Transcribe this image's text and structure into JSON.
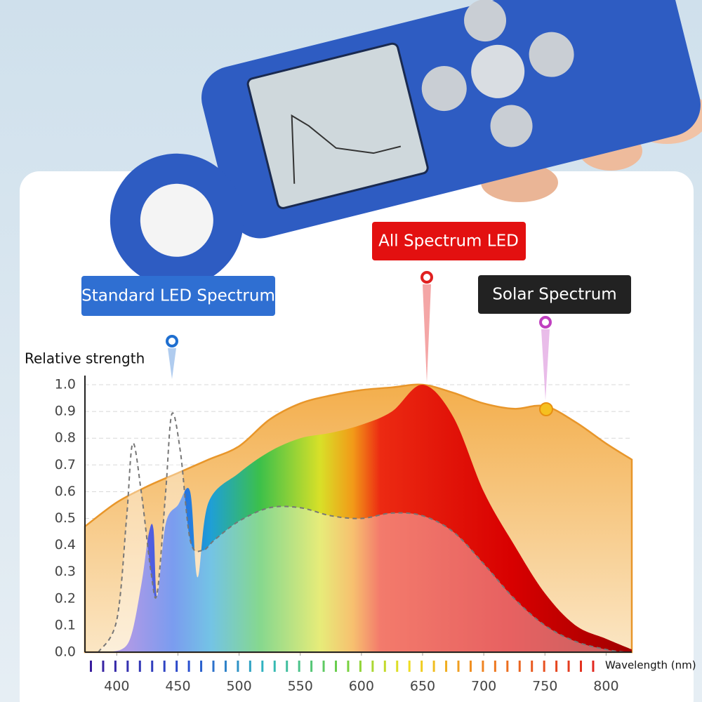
{
  "chart_data": {
    "type": "area",
    "y_label": "Relative strength",
    "x_label": "Wavelength (nm)",
    "xlim": [
      374,
      821
    ],
    "xticks": [
      400,
      450,
      500,
      550,
      600,
      650,
      700,
      750,
      800
    ],
    "ylim": [
      0,
      1
    ],
    "yticks": [
      {
        "value": 0,
        "label": "0.0"
      },
      0.1,
      0.2,
      0.3,
      0.4,
      0.5,
      0.6,
      0.7,
      0.8,
      0.9,
      {
        "value": 1,
        "label": "1.0"
      }
    ],
    "grid": true,
    "series": [
      {
        "name": "Solar Spectrum",
        "color": "#e8962a",
        "x": [
          374,
          400,
          425,
          450,
          475,
          500,
          525,
          550,
          575,
          600,
          625,
          650,
          675,
          700,
          725,
          750,
          775,
          800,
          821
        ],
        "values": [
          0.47,
          0.56,
          0.62,
          0.67,
          0.72,
          0.77,
          0.87,
          0.93,
          0.96,
          0.98,
          0.99,
          1.0,
          0.97,
          0.93,
          0.91,
          0.92,
          0.86,
          0.78,
          0.72
        ]
      },
      {
        "name": "All Spectrum LED",
        "color": "#e00000",
        "x": [
          395,
          410,
          420,
          426,
          430,
          433,
          440,
          450,
          460,
          466,
          475,
          500,
          525,
          550,
          575,
          600,
          625,
          650,
          675,
          700,
          725,
          750,
          775,
          800,
          821
        ],
        "values": [
          0.0,
          0.04,
          0.25,
          0.44,
          0.46,
          0.21,
          0.48,
          0.55,
          0.6,
          0.28,
          0.56,
          0.67,
          0.75,
          0.8,
          0.82,
          0.85,
          0.9,
          1.0,
          0.88,
          0.6,
          0.4,
          0.22,
          0.1,
          0.05,
          0.01
        ]
      },
      {
        "name": "Standard LED Spectrum",
        "color": "#777777",
        "x": [
          385,
          400,
          408,
          413,
          420,
          428,
          433,
          440,
          445,
          452,
          460,
          470,
          480,
          500,
          525,
          550,
          575,
          600,
          625,
          650,
          675,
          700,
          725,
          750,
          775,
          800,
          815
        ],
        "values": [
          0.0,
          0.12,
          0.5,
          0.78,
          0.6,
          0.3,
          0.22,
          0.6,
          0.89,
          0.75,
          0.42,
          0.38,
          0.42,
          0.49,
          0.54,
          0.54,
          0.51,
          0.5,
          0.52,
          0.51,
          0.45,
          0.33,
          0.2,
          0.1,
          0.04,
          0.01,
          0.0
        ]
      }
    ]
  }
}
